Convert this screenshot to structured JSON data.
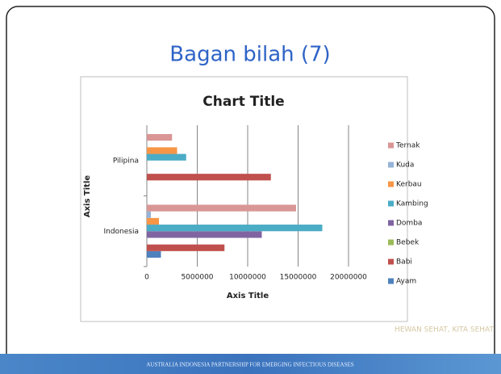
{
  "slide_title": "Bagan bilah (7)",
  "chart_data": {
    "type": "barh",
    "title": "Chart Title",
    "x_label": "Axis Title",
    "y_label": "Axis Title",
    "categories": [
      "Indonesia",
      "Pilipina"
    ],
    "series": [
      {
        "name": "Ayam",
        "color": "#4f81bd",
        "values": [
          1400000,
          0
        ]
      },
      {
        "name": "Babi",
        "color": "#c0504d",
        "values": [
          7700000,
          12300000
        ]
      },
      {
        "name": "Bebek",
        "color": "#9bbb59",
        "values": [
          0,
          0
        ]
      },
      {
        "name": "Domba",
        "color": "#8064a2",
        "values": [
          11400000,
          0
        ]
      },
      {
        "name": "Kambing",
        "color": "#4bacc6",
        "values": [
          17400000,
          3900000
        ]
      },
      {
        "name": "Kerbau",
        "color": "#f79646",
        "values": [
          1200000,
          3000000
        ]
      },
      {
        "name": "Kuda",
        "color": "#95b3d7",
        "values": [
          400000,
          0
        ]
      },
      {
        "name": "Ternak",
        "color": "#d99694",
        "values": [
          14800000,
          2500000
        ]
      }
    ],
    "xlim": [
      0,
      20000000
    ],
    "xticks": [
      0,
      5000000,
      10000000,
      15000000,
      20000000
    ],
    "grid": true,
    "legend": "right"
  },
  "footer": "AUSTRALIA INDONESIA PARTNERSHIP FOR EMERGING INFECTIOUS DISEASES",
  "watermark": "HEWAN SEHAT, KITA SEHAT"
}
